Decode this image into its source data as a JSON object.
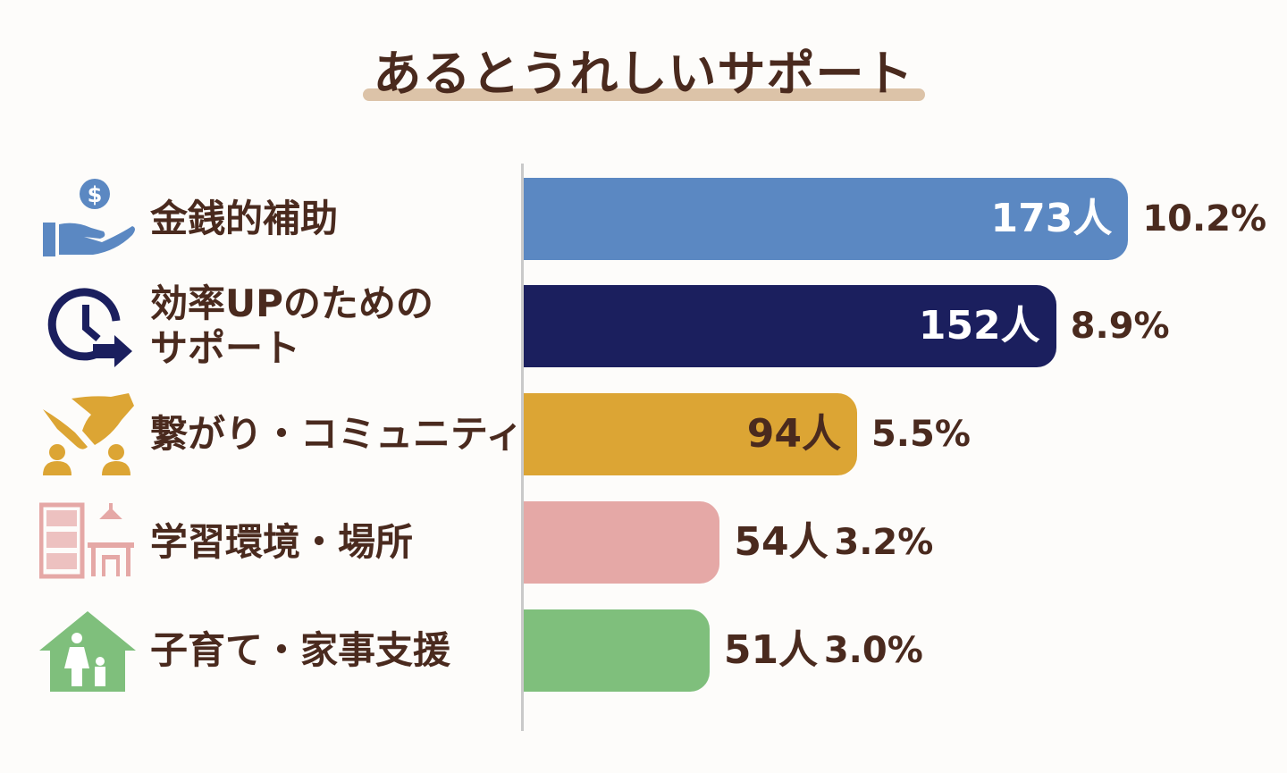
{
  "chart_data": {
    "type": "bar",
    "orientation": "horizontal",
    "title": "あるとうれしいサポート",
    "categories": [
      "金銭的補助",
      "効率UPのためのサポート",
      "繋がり・コミュニティ",
      "学習環境・場所",
      "子育て・家事支援"
    ],
    "category_lines": [
      [
        "金銭的補助"
      ],
      [
        "効率UPのための",
        "サポート"
      ],
      [
        "繋がり・コミュニティ"
      ],
      [
        "学習環境・場所"
      ],
      [
        "子育て・家事支援"
      ]
    ],
    "values": [
      173,
      152,
      94,
      54,
      51
    ],
    "value_labels": [
      "173人",
      "152人",
      "94人",
      "54人",
      "51人"
    ],
    "percent": [
      10.2,
      8.9,
      5.5,
      3.2,
      3.0
    ],
    "percent_labels": [
      "10.2%",
      "8.9%",
      "5.5%",
      "3.2%",
      "3.0%"
    ],
    "colors": [
      "#5b88c2",
      "#1b1f5e",
      "#dca534",
      "#e5a8a6",
      "#7fbf7c"
    ],
    "icons": [
      "money-hand-icon",
      "clock-arrow-icon",
      "handshake-people-icon",
      "bookshelf-desk-icon",
      "house-family-icon"
    ],
    "grid": false,
    "legend": "none"
  }
}
